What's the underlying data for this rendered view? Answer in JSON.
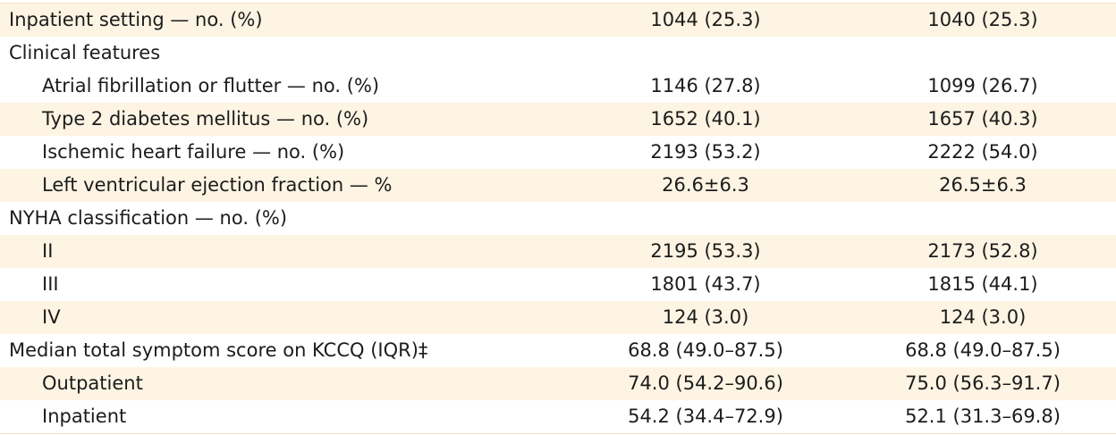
{
  "rows": [
    {
      "label": "Inpatient setting — no. (%)",
      "level": 0,
      "shaded": true,
      "v1": "1044 (25.3)",
      "v2": "1040 (25.3)"
    },
    {
      "label": "Clinical features",
      "level": 0,
      "shaded": false,
      "v1": "",
      "v2": ""
    },
    {
      "label": "Atrial fibrillation or flutter — no. (%)",
      "level": 1,
      "shaded": false,
      "v1": "1146 (27.8)",
      "v2": "1099 (26.7)"
    },
    {
      "label": "Type 2 diabetes mellitus — no. (%)",
      "level": 1,
      "shaded": true,
      "v1": "1652 (40.1)",
      "v2": "1657 (40.3)"
    },
    {
      "label": "Ischemic heart failure — no. (%)",
      "level": 1,
      "shaded": false,
      "v1": "2193 (53.2)",
      "v2": "2222 (54.0)"
    },
    {
      "label": "Left ventricular ejection fraction — %",
      "level": 1,
      "shaded": true,
      "v1": "26.6±6.3",
      "v2": "26.5±6.3"
    },
    {
      "label": "NYHA classification — no. (%)",
      "level": 0,
      "shaded": false,
      "v1": "",
      "v2": ""
    },
    {
      "label": "II",
      "level": 1,
      "shaded": true,
      "v1": "2195 (53.3)",
      "v2": "2173 (52.8)"
    },
    {
      "label": "III",
      "level": 1,
      "shaded": false,
      "v1": "1801 (43.7)",
      "v2": "1815 (44.1)"
    },
    {
      "label": "IV",
      "level": 1,
      "shaded": true,
      "v1": "124 (3.0)",
      "v2": "124 (3.0)"
    },
    {
      "label": "Median total symptom score on KCCQ (IQR)‡",
      "level": 0,
      "shaded": false,
      "v1": "68.8 (49.0–87.5)",
      "v2": "68.8 (49.0–87.5)"
    },
    {
      "label": "Outpatient",
      "level": 1,
      "shaded": true,
      "v1": "74.0 (54.2–90.6)",
      "v2": "75.0 (56.3–91.7)"
    },
    {
      "label": "Inpatient",
      "level": 1,
      "shaded": false,
      "v1": "54.2 (34.4–72.9)",
      "v2": "52.1 (31.3–69.8)"
    }
  ],
  "colors": {
    "shaded_row": "#fdf4e3",
    "separator": "#f3e2c3",
    "text": "#1c1c1c"
  }
}
